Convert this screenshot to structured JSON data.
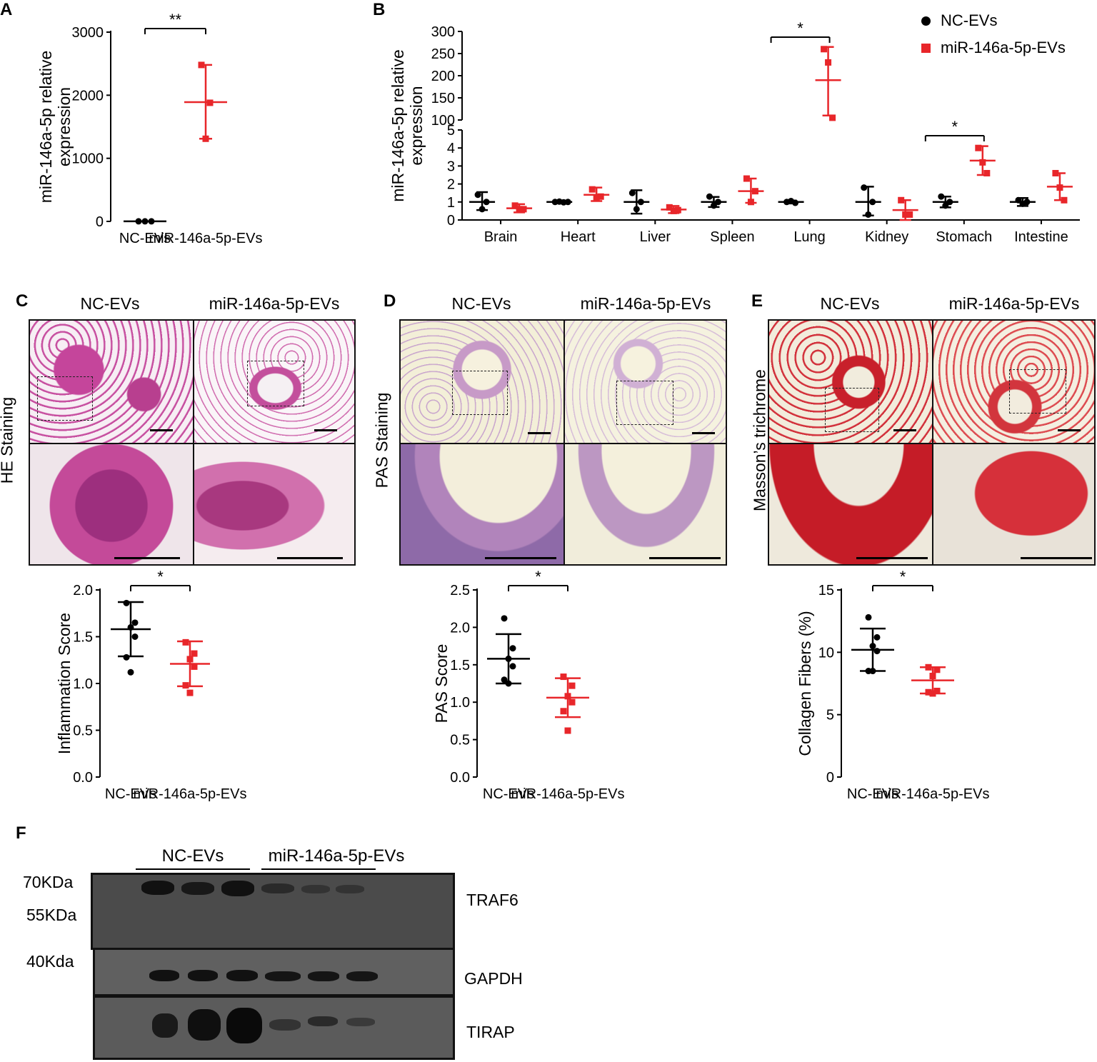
{
  "panels": {
    "A": "A",
    "B": "B",
    "C": "C",
    "D": "D",
    "E": "E",
    "F": "F"
  },
  "colors": {
    "nc": "#000000",
    "mir": "#e8262a"
  },
  "legend": {
    "nc": "NC-EVs",
    "mir": "miR-146a-5p-EVs"
  },
  "chart_data": [
    {
      "id": "A",
      "type": "scatter",
      "ylabel": [
        "miR-146a-5p relative",
        "expression"
      ],
      "categories": [
        "NC-EVs",
        "miR-146a-5p-EVs"
      ],
      "yticks": [
        "0",
        "1000",
        "2000",
        "3000"
      ],
      "ylim": [
        0,
        3000
      ],
      "series": [
        {
          "group": "NC-EVs",
          "points": [
            1,
            1,
            1
          ],
          "mean": 1,
          "sd_low": 1,
          "sd_high": 1
        },
        {
          "group": "miR-146a-5p-EVs",
          "points": [
            2480,
            1880,
            1310
          ],
          "mean": 1890,
          "sd_low": 1310,
          "sd_high": 2480
        }
      ],
      "significance": "**"
    },
    {
      "id": "B",
      "type": "scatter",
      "ylabel": [
        "miR-146a-5p relative",
        "expression"
      ],
      "categories": [
        "Brain",
        "Heart",
        "Liver",
        "Spleen",
        "Lung",
        "Kidney",
        "Stomach",
        "Intestine"
      ],
      "yticks_lower": [
        "0",
        "1",
        "2",
        "3",
        "4",
        "5"
      ],
      "yticks_upper": [
        "100",
        "150",
        "200",
        "250",
        "300"
      ],
      "ylim_lower": [
        0,
        5
      ],
      "ylim_upper": [
        100,
        300
      ],
      "series": [
        {
          "name": "NC-EVs",
          "groups": [
            {
              "points": [
                1.4,
                0.6,
                1.0
              ],
              "mean": 1.0,
              "lo": 0.55,
              "hi": 1.55
            },
            {
              "points": [
                1.0,
                1.02,
                0.98,
                1.0
              ],
              "mean": 1.0,
              "lo": 0.93,
              "hi": 1.07
            },
            {
              "points": [
                1.5,
                0.6,
                1.0
              ],
              "mean": 1.0,
              "lo": 0.35,
              "hi": 1.65
            },
            {
              "points": [
                1.3,
                0.8,
                1.0
              ],
              "mean": 1.0,
              "lo": 0.72,
              "hi": 1.28
            },
            {
              "points": [
                1.0,
                1.05,
                0.95
              ],
              "mean": 1.0,
              "lo": 0.92,
              "hi": 1.08
            },
            {
              "points": [
                1.8,
                0.3,
                1.0
              ],
              "mean": 1.0,
              "lo": 0.25,
              "hi": 1.85
            },
            {
              "points": [
                1.3,
                0.8,
                1.0
              ],
              "mean": 1.0,
              "lo": 0.7,
              "hi": 1.3
            },
            {
              "points": [
                1.1,
                0.9,
                1.0
              ],
              "mean": 1.0,
              "lo": 0.78,
              "hi": 1.22
            }
          ]
        },
        {
          "name": "miR-146a-5p-EVs",
          "groups": [
            {
              "points": [
                0.8,
                0.6,
                0.6
              ],
              "mean": 0.65,
              "lo": 0.42,
              "hi": 0.88
            },
            {
              "points": [
                1.7,
                1.2,
                1.3
              ],
              "mean": 1.4,
              "lo": 1.05,
              "hi": 1.8
            },
            {
              "points": [
                0.7,
                0.5,
                0.55
              ],
              "mean": 0.58,
              "lo": 0.38,
              "hi": 0.78
            },
            {
              "points": [
                2.3,
                1.0,
                1.6
              ],
              "mean": 1.6,
              "lo": 0.95,
              "hi": 2.3
            },
            {
              "points": [
                260,
                230,
                105
              ],
              "mean": 190,
              "lo": 110,
              "hi": 265
            },
            {
              "points": [
                1.1,
                0.3,
                0.3
              ],
              "mean": 0.55,
              "lo": 0.0,
              "hi": 1.1
            },
            {
              "points": [
                4.0,
                3.2,
                2.6
              ],
              "mean": 3.3,
              "lo": 2.5,
              "hi": 4.1
            },
            {
              "points": [
                2.6,
                1.8,
                1.1
              ],
              "mean": 1.85,
              "lo": 1.1,
              "hi": 2.6
            }
          ]
        }
      ],
      "significance": [
        {
          "category": "Lung",
          "label": "*"
        },
        {
          "category": "Stomach",
          "label": "*"
        }
      ]
    },
    {
      "id": "C",
      "type": "scatter",
      "ylabel": "Inflammation Score",
      "categories": [
        "NC-EVs",
        "miR-146a-5p-EVs"
      ],
      "yticks": [
        "0.0",
        "0.5",
        "1.0",
        "1.5",
        "2.0"
      ],
      "ylim": [
        0,
        2.0
      ],
      "series": [
        {
          "group": "NC-EVs",
          "points": [
            1.86,
            1.65,
            1.6,
            1.5,
            1.28,
            1.12
          ],
          "mean": 1.58,
          "sd_low": 1.29,
          "sd_high": 1.87
        },
        {
          "group": "miR-146a-5p-EVs",
          "points": [
            1.44,
            1.32,
            1.26,
            1.18,
            0.98,
            0.9
          ],
          "mean": 1.21,
          "sd_low": 0.97,
          "sd_high": 1.45
        }
      ],
      "significance": "*"
    },
    {
      "id": "D",
      "type": "scatter",
      "ylabel": "PAS Score",
      "categories": [
        "NC-EVs",
        "miR-146a-5p-EVs"
      ],
      "yticks": [
        "0.0",
        "0.5",
        "1.0",
        "1.5",
        "2.0",
        "2.5"
      ],
      "ylim": [
        0,
        2.5
      ],
      "series": [
        {
          "group": "NC-EVs",
          "points": [
            2.12,
            1.72,
            1.58,
            1.48,
            1.3,
            1.25
          ],
          "mean": 1.58,
          "sd_low": 1.25,
          "sd_high": 1.91
        },
        {
          "group": "miR-146a-5p-EVs",
          "points": [
            1.34,
            1.22,
            1.08,
            1.0,
            0.88,
            0.62
          ],
          "mean": 1.06,
          "sd_low": 0.8,
          "sd_high": 1.32
        }
      ],
      "significance": "*"
    },
    {
      "id": "E",
      "type": "scatter",
      "ylabel": "Collagen Fibers (%)",
      "categories": [
        "NC-EVs",
        "miR-146a-5p-EVs"
      ],
      "yticks": [
        "0",
        "5",
        "10",
        "15"
      ],
      "ylim": [
        0,
        15
      ],
      "series": [
        {
          "group": "NC-EVs",
          "points": [
            12.8,
            11.2,
            10.5,
            10.1,
            8.5,
            8.5
          ],
          "mean": 10.2,
          "sd_low": 8.5,
          "sd_high": 11.9
        },
        {
          "group": "miR-146a-5p-EVs",
          "points": [
            8.8,
            8.6,
            8.1,
            6.9,
            6.8,
            6.7
          ],
          "mean": 7.75,
          "sd_low": 6.7,
          "sd_high": 8.8
        }
      ],
      "significance": "*"
    }
  ],
  "histology": {
    "C": {
      "row_label": "HE Staining",
      "col1": "NC-EVs",
      "col2": "miR-146a-5p-EVs"
    },
    "D": {
      "row_label": "PAS Staining",
      "col1": "NC-EVs",
      "col2": "miR-146a-5p-EVs"
    },
    "E": {
      "row_label": "Masson’s trichrome",
      "col1": "NC-EVs",
      "col2": "miR-146a-5p-EVs"
    }
  },
  "western": {
    "groups": [
      "NC-EVs",
      "miR-146a-5p-EVs"
    ],
    "markers": [
      "70KDa",
      "55KDa",
      "40Kda"
    ],
    "proteins": [
      "TRAF6",
      "GAPDH",
      "TIRAP"
    ]
  }
}
